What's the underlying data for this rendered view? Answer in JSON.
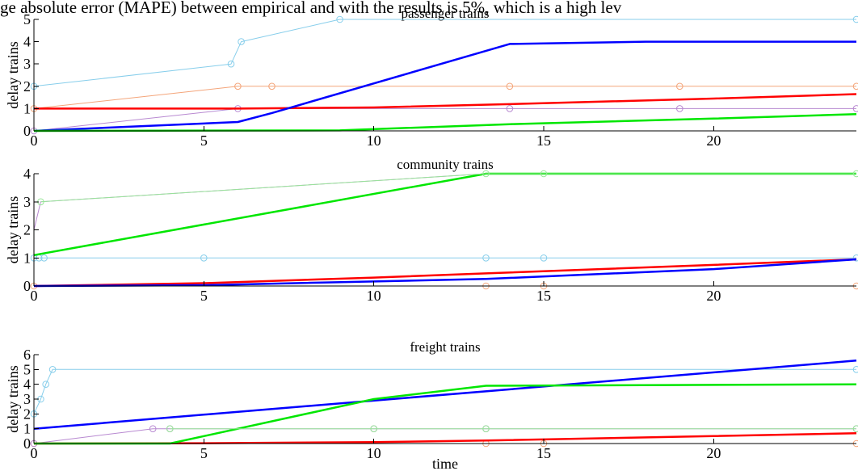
{
  "caption_fragment": "ge absolute error (MAPE) between empirical and with the results is 5%, which is a high lev",
  "xlabel": "time",
  "ylabel": "delay trains",
  "chart_data": [
    {
      "type": "line",
      "title": "passenger trains",
      "xlim": [
        0,
        24.2
      ],
      "ylim": [
        0,
        5
      ],
      "xticks": [
        0,
        5,
        10,
        15,
        20
      ],
      "yticks": [
        0,
        1,
        2,
        3,
        4,
        5
      ],
      "grid": false,
      "series": [
        {
          "color": "#87ceeb",
          "markers": true,
          "width": 1,
          "x": [
            0,
            5.8,
            6.1,
            9,
            24.2
          ],
          "y": [
            2,
            3,
            4,
            5,
            5
          ]
        },
        {
          "color": "#f4a57a",
          "markers": true,
          "width": 1,
          "x": [
            0,
            6,
            7,
            14,
            19,
            24.2
          ],
          "y": [
            1,
            2,
            2,
            2,
            2,
            2
          ]
        },
        {
          "color": "#b889d1",
          "markers": true,
          "width": 1,
          "x": [
            0,
            6,
            14,
            19,
            24.2
          ],
          "y": [
            0,
            1,
            1,
            1,
            1
          ]
        },
        {
          "color": "#ff0000",
          "markers": false,
          "width": 2.5,
          "x": [
            0,
            6,
            10,
            14,
            20,
            24.2
          ],
          "y": [
            1,
            1,
            1.05,
            1.2,
            1.45,
            1.65
          ]
        },
        {
          "color": "#0000ff",
          "markers": false,
          "width": 2.5,
          "x": [
            0,
            6,
            7,
            14,
            18,
            24.2
          ],
          "y": [
            0,
            0.4,
            0.8,
            3.9,
            4,
            4
          ]
        },
        {
          "color": "#00e600",
          "markers": false,
          "width": 2.5,
          "x": [
            0,
            9,
            14,
            20,
            24.2
          ],
          "y": [
            0,
            0.02,
            0.3,
            0.55,
            0.75
          ]
        }
      ]
    },
    {
      "type": "line",
      "title": "community trains",
      "xlim": [
        0,
        24.2
      ],
      "ylim": [
        0,
        4
      ],
      "xticks": [
        0,
        5,
        10,
        15,
        20
      ],
      "yticks": [
        0,
        1,
        2,
        3,
        4
      ],
      "grid": false,
      "series": [
        {
          "color": "#87ceeb",
          "markers": true,
          "width": 1,
          "x": [
            0,
            0.15,
            0.3,
            5,
            13.3,
            15,
            24.2
          ],
          "y": [
            1,
            1,
            1,
            1,
            1,
            1,
            1
          ]
        },
        {
          "color": "#f4a57a",
          "markers": true,
          "width": 1,
          "x": [
            0,
            13.3,
            15,
            24.2
          ],
          "y": [
            0,
            0,
            0,
            0
          ]
        },
        {
          "color": "#b889d1",
          "markers": false,
          "width": 1,
          "x": [
            0,
            0.2,
            13.3,
            24.2
          ],
          "y": [
            2,
            3,
            4,
            4
          ]
        },
        {
          "color": "#ff0000",
          "markers": false,
          "width": 2.5,
          "x": [
            0,
            5,
            10,
            13.3,
            20,
            24.2
          ],
          "y": [
            0,
            0.1,
            0.3,
            0.45,
            0.75,
            0.95
          ]
        },
        {
          "color": "#0000ff",
          "markers": false,
          "width": 2.5,
          "x": [
            0,
            5,
            13.3,
            20,
            24.2
          ],
          "y": [
            0,
            0.03,
            0.25,
            0.6,
            0.95
          ]
        },
        {
          "color": "#00e600",
          "markers": false,
          "width": 2.5,
          "x": [
            0,
            13.3,
            24.2
          ],
          "y": [
            1.1,
            4,
            4
          ]
        },
        {
          "color": "#98e698",
          "markers": true,
          "width": 1,
          "x": [
            0.2,
            13.3,
            15,
            24.2
          ],
          "y": [
            3,
            4,
            4,
            4
          ]
        }
      ]
    },
    {
      "type": "line",
      "title": "freight trains",
      "xlim": [
        0,
        24.2
      ],
      "ylim": [
        0,
        6
      ],
      "xticks": [
        0,
        5,
        10,
        15,
        20
      ],
      "yticks": [
        0,
        1,
        2,
        3,
        4,
        5,
        6
      ],
      "grid": false,
      "series": [
        {
          "color": "#87ceeb",
          "markers": true,
          "width": 1,
          "x": [
            0,
            0.2,
            0.35,
            0.55,
            24.2
          ],
          "y": [
            2,
            3,
            4,
            5,
            5
          ]
        },
        {
          "color": "#f4a57a",
          "markers": true,
          "width": 1,
          "x": [
            0,
            13.3,
            15,
            24.2
          ],
          "y": [
            0,
            0,
            0,
            0
          ]
        },
        {
          "color": "#b889d1",
          "markers": true,
          "width": 1,
          "x": [
            0,
            3.5,
            4,
            10,
            13.3,
            24.2
          ],
          "y": [
            0,
            1,
            1,
            1,
            1,
            1
          ]
        },
        {
          "color": "#ff0000",
          "markers": false,
          "width": 2.5,
          "x": [
            0,
            5,
            10,
            13.3,
            20,
            24.2
          ],
          "y": [
            0,
            0.02,
            0.1,
            0.2,
            0.5,
            0.7
          ]
        },
        {
          "color": "#0000ff",
          "markers": false,
          "width": 2.5,
          "x": [
            0,
            24.2
          ],
          "y": [
            1,
            5.6
          ]
        },
        {
          "color": "#00e600",
          "markers": false,
          "width": 2.5,
          "x": [
            0,
            4,
            10,
            13.3,
            24.2
          ],
          "y": [
            0,
            0,
            3,
            3.9,
            4
          ]
        },
        {
          "color": "#98e698",
          "markers": true,
          "width": 1,
          "x": [
            4,
            10,
            13.3,
            24.2
          ],
          "y": [
            1,
            1,
            1,
            1
          ]
        }
      ]
    }
  ]
}
